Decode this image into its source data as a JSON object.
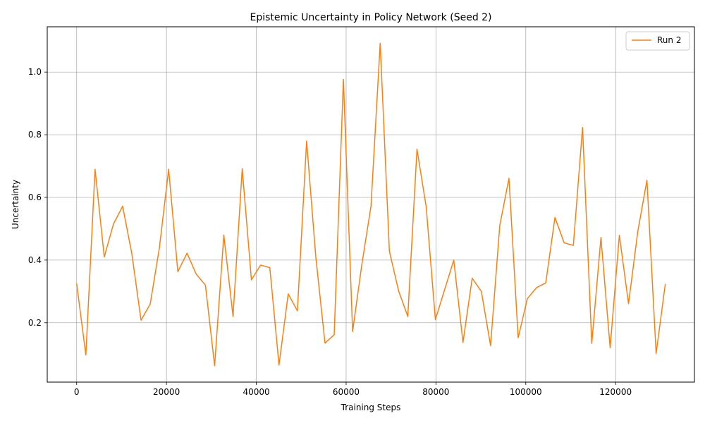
{
  "chart_data": {
    "type": "line",
    "title": "Epistemic Uncertainty in Policy Network (Seed 2)",
    "xlabel": "Training Steps",
    "ylabel": "Uncertainty",
    "xlim": [
      -6550,
      137550
    ],
    "ylim": [
      0.0105,
      1.1445
    ],
    "x_ticks": [
      0,
      20000,
      40000,
      60000,
      80000,
      100000,
      120000
    ],
    "y_ticks": [
      0.2,
      0.4,
      0.6,
      0.8,
      1.0
    ],
    "x_tick_labels": [
      "0",
      "20000",
      "40000",
      "60000",
      "80000",
      "100000",
      "120000"
    ],
    "y_tick_labels": [
      "0.2",
      "0.4",
      "0.6",
      "0.8",
      "1.0"
    ],
    "grid": true,
    "legend_position": "top-right",
    "series": [
      {
        "name": "Run 2",
        "color": "#ff7f0e",
        "x": [
          0,
          2048,
          4096,
          6144,
          8192,
          10240,
          12288,
          14336,
          16384,
          18432,
          20480,
          22528,
          24576,
          26624,
          28672,
          30720,
          32768,
          34816,
          36864,
          38912,
          40960,
          43008,
          45056,
          47104,
          49152,
          51200,
          53248,
          55296,
          57344,
          59392,
          61440,
          63488,
          65536,
          67584,
          69632,
          71680,
          73728,
          75776,
          77824,
          79872,
          81920,
          83968,
          86016,
          88064,
          90112,
          92160,
          94208,
          96256,
          98304,
          100352,
          102400,
          104448,
          106496,
          108544,
          110592,
          112640,
          114688,
          116736,
          118784,
          120832,
          122880,
          124928,
          126976,
          129024,
          131072
        ],
        "values": [
          0.325,
          0.097,
          0.69,
          0.41,
          0.515,
          0.572,
          0.42,
          0.208,
          0.26,
          0.44,
          0.69,
          0.363,
          0.422,
          0.355,
          0.32,
          0.063,
          0.48,
          0.22,
          0.692,
          0.337,
          0.384,
          0.376,
          0.065,
          0.292,
          0.238,
          0.78,
          0.41,
          0.135,
          0.162,
          0.977,
          0.172,
          0.385,
          0.572,
          1.092,
          0.428,
          0.302,
          0.22,
          0.754,
          0.57,
          0.21,
          0.305,
          0.4,
          0.137,
          0.342,
          0.3,
          0.127,
          0.51,
          0.661,
          0.152,
          0.277,
          0.312,
          0.327,
          0.536,
          0.455,
          0.447,
          0.823,
          0.134,
          0.472,
          0.12,
          0.479,
          0.261,
          0.49,
          0.655,
          0.102,
          0.324
        ]
      }
    ]
  }
}
